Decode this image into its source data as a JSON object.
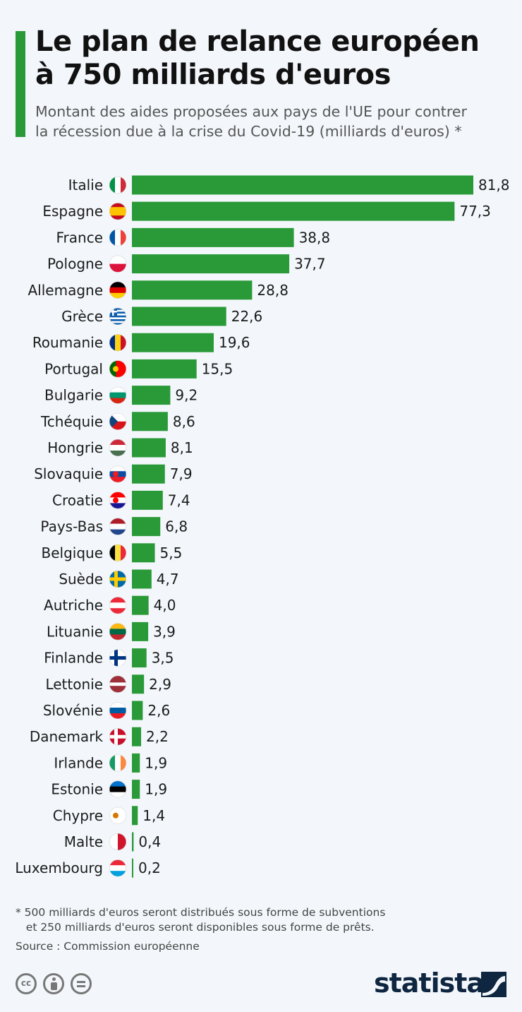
{
  "header": {
    "title": "Le plan de relance européen\nà 750 milliards d'euros",
    "subtitle": "Montant des aides proposées aux pays de l'UE pour contrer\nla récession due à la crise du Covid-19 (milliards d'euros) *"
  },
  "chart_data": {
    "type": "bar",
    "orientation": "horizontal",
    "categories": [
      "Italie",
      "Espagne",
      "France",
      "Pologne",
      "Allemagne",
      "Grèce",
      "Roumanie",
      "Portugal",
      "Bulgarie",
      "Tchéquie",
      "Hongrie",
      "Slovaquie",
      "Croatie",
      "Pays-Bas",
      "Belgique",
      "Suède",
      "Autriche",
      "Lituanie",
      "Finlande",
      "Lettonie",
      "Slovénie",
      "Danemark",
      "Irlande",
      "Estonie",
      "Chypre",
      "Malte",
      "Luxembourg"
    ],
    "values": [
      81.8,
      77.3,
      38.8,
      37.7,
      28.8,
      22.6,
      19.6,
      15.5,
      9.2,
      8.6,
      8.1,
      7.9,
      7.4,
      6.8,
      5.5,
      4.7,
      4.0,
      3.9,
      3.5,
      2.9,
      2.6,
      2.2,
      1.9,
      1.9,
      1.4,
      0.4,
      0.2
    ],
    "value_labels": [
      "81,8",
      "77,3",
      "38,8",
      "37,7",
      "28,8",
      "22,6",
      "19,6",
      "15,5",
      "9,2",
      "8,6",
      "8,1",
      "7,9",
      "7,4",
      "6,8",
      "5,5",
      "4,7",
      "4,0",
      "3,9",
      "3,5",
      "2,9",
      "2,6",
      "2,2",
      "1,9",
      "1,9",
      "1,4",
      "0,4",
      "0,2"
    ],
    "flag_icons": [
      "italy-flag-icon",
      "spain-flag-icon",
      "france-flag-icon",
      "poland-flag-icon",
      "germany-flag-icon",
      "greece-flag-icon",
      "romania-flag-icon",
      "portugal-flag-icon",
      "bulgaria-flag-icon",
      "czechia-flag-icon",
      "hungary-flag-icon",
      "slovakia-flag-icon",
      "croatia-flag-icon",
      "netherlands-flag-icon",
      "belgium-flag-icon",
      "sweden-flag-icon",
      "austria-flag-icon",
      "lithuania-flag-icon",
      "finland-flag-icon",
      "latvia-flag-icon",
      "slovenia-flag-icon",
      "denmark-flag-icon",
      "ireland-flag-icon",
      "estonia-flag-icon",
      "cyprus-flag-icon",
      "malta-flag-icon",
      "luxembourg-flag-icon"
    ],
    "xlim": [
      0,
      81.8
    ],
    "grid": false,
    "legend": "none",
    "bar_color": "#2a9a39"
  },
  "footer": {
    "footnote": "* 500 milliards d'euros seront distribués sous forme de subventions\n   et 250 milliards d'euros seront disponibles sous forme de prêts.",
    "source": "Source : Commission européenne",
    "brand": "statista",
    "license_icons": [
      "cc-icon",
      "attribution-icon",
      "no-derivatives-icon"
    ],
    "license_cc_text": "cc"
  },
  "colors": {
    "accent": "#2a9a39",
    "background": "#f3f7fb",
    "brand": "#0f2640"
  }
}
